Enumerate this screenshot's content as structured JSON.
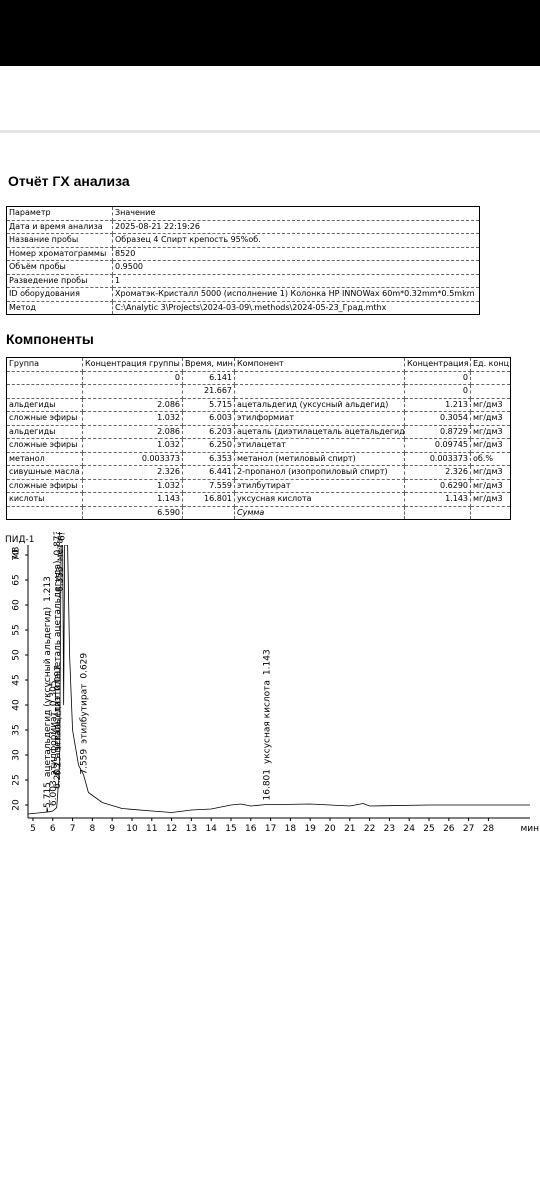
{
  "title": "Отчёт ГХ анализа",
  "params": {
    "header": [
      "Параметр",
      "Значение"
    ],
    "rows": [
      [
        "Дата и время анализа",
        "2025-08-21 22:19:26"
      ],
      [
        "Название пробы",
        "Образец 4 Спирт крепость 95%об."
      ],
      [
        "Номер хроматограммы",
        "8520"
      ],
      [
        "Объём пробы",
        "0.9500"
      ],
      [
        "Разведение пробы",
        "1"
      ],
      [
        "ID оборудования",
        "Хроматэк-Кристалл 5000 (исполнение 1) Колонка HP INNOWax 60m*0.32mm*0.5mkm"
      ],
      [
        "Метод",
        "C:\\Analytic 3\\Projects\\2024-03-09\\.methods\\2024-05-23_Град.mthx"
      ]
    ]
  },
  "components_title": "Компоненты",
  "components": {
    "header": [
      "Группа",
      "Концентрация группы",
      "Время, мин",
      "Компонент",
      "Концентрация",
      "Ед. конц."
    ],
    "rows": [
      [
        null,
        "0",
        "6.141",
        null,
        "0",
        null
      ],
      [
        null,
        null,
        "21.667",
        null,
        "0",
        null
      ],
      [
        "альдегиды",
        "2.086",
        "5.715",
        "ацетальдегид (уксусный альдегид)",
        "1.213",
        "мг/дм3"
      ],
      [
        "сложные эфиры",
        "1.032",
        "6.003",
        "этилформиат",
        "0.3054",
        "мг/дм3"
      ],
      [
        "альдегиды",
        "2.086",
        "6.203",
        "ацеталь (диэтилацеталь ацетальдегида)",
        "0.8729",
        "мг/дм3"
      ],
      [
        "сложные эфиры",
        "1.032",
        "6.250",
        "этилацетат",
        "0.09745",
        "мг/дм3"
      ],
      [
        "метанол",
        "0.003373",
        "6.353",
        "метанол (метиловый спирт)",
        "0.003373",
        "об.%"
      ],
      [
        "сивушные масла",
        "2.326",
        "6.441",
        "2-пропанол (изопропиловый спирт)",
        "2.326",
        "мг/дм3"
      ],
      [
        "сложные эфиры",
        "1.032",
        "7.559",
        "этилбутират",
        "0.6290",
        "мг/дм3"
      ],
      [
        "кислоты",
        "1.143",
        "16.801",
        "уксусная кислота",
        "1.143",
        "мг/дм3"
      ]
    ],
    "total": [
      null,
      "6.590",
      null,
      "Сумма",
      null,
      null
    ]
  },
  "chromatogram": {
    "label": "ПИД-1",
    "y_unit": "мВ",
    "x_unit": "мин",
    "xlim": [
      4.75,
      30.1
    ],
    "ylim": [
      17.4,
      72
    ],
    "xticks": [
      5,
      6,
      7,
      8,
      9,
      10,
      11,
      12,
      13,
      14,
      15,
      16,
      17,
      18,
      19,
      20,
      21,
      22,
      23,
      24,
      25,
      26,
      27,
      28
    ],
    "yticks": [
      20,
      25,
      30,
      35,
      40,
      45,
      50,
      55,
      60,
      65,
      70
    ],
    "trace": {
      "x": [
        4.75,
        5.5,
        5.7,
        5.715,
        5.75,
        6.0,
        6.2,
        6.3,
        6.35,
        6.42,
        6.5,
        6.55,
        6.6,
        6.75,
        6.85,
        7.0,
        7.3,
        7.559,
        7.8,
        8.5,
        9.5,
        11,
        12,
        13,
        14,
        15,
        15.5,
        16,
        16.801,
        17.5,
        19,
        21,
        21.67,
        22,
        25,
        30.1
      ],
      "y": [
        18.2,
        18.5,
        18.6,
        19.5,
        18.6,
        18.8,
        19.5,
        25,
        30,
        72,
        72,
        40,
        72,
        72,
        50,
        35,
        28,
        26,
        22.5,
        20.5,
        19.3,
        18.8,
        18.5,
        19,
        19.2,
        20,
        20.2,
        19.8,
        20.1,
        20.1,
        20.2,
        19.8,
        20.3,
        19.8,
        20,
        20
      ]
    },
    "peaks": [
      {
        "time": 5.715,
        "name": "ацетальдегид (уксусный альдегид)",
        "value": 1.213
      },
      {
        "time": 6.003,
        "name": "этилформиат",
        "value": 0.305
      },
      {
        "time": 6.203,
        "name": "ацеталь (диэтилацеталь ацетальдегида)",
        "value": 0.873
      },
      {
        "time": 6.25,
        "name": "этилацетат",
        "value": 0.097
      },
      {
        "time": 6.353,
        "name": "метанол (метиловый спирт)",
        "value": 0.003
      },
      {
        "time": 6.441,
        "name": "2-пропанол (изопропиловый спирт)",
        "value": 2.326
      },
      {
        "time": 7.559,
        "name": "этилбутират",
        "value": 0.629
      },
      {
        "time": 16.801,
        "name": "уксусная кислота",
        "value": 1.143
      }
    ]
  }
}
